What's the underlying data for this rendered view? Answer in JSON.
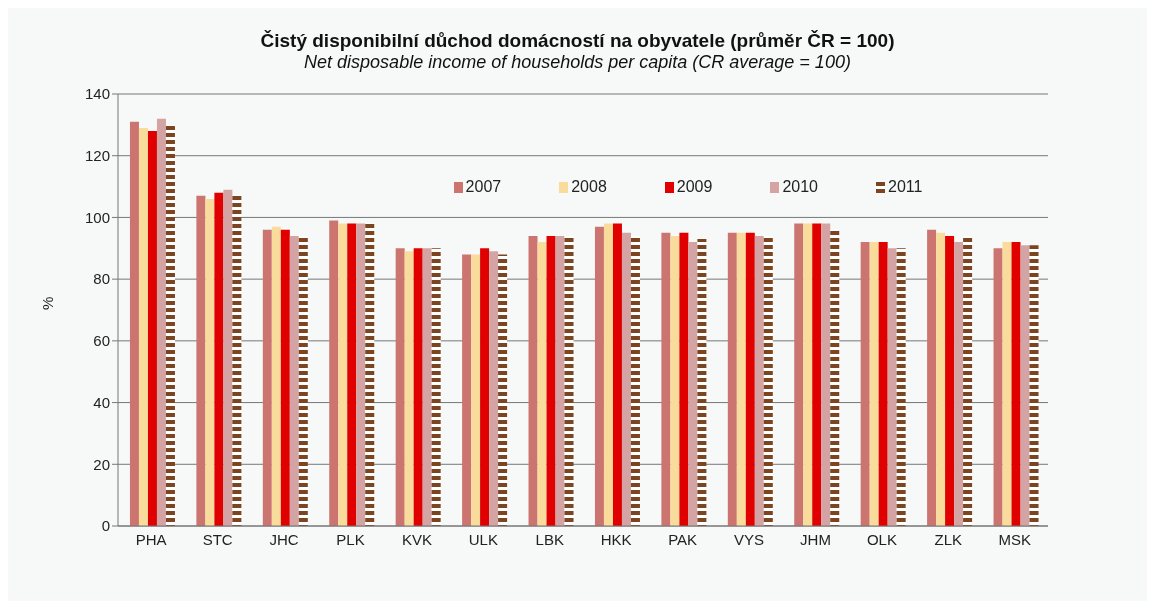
{
  "chart_data": {
    "type": "bar",
    "title": "Čistý disponibilní důchod domácností na obyvatele (průměr ČR = 100)",
    "subtitle": "Net disposable income of households per capita (CR average = 100)",
    "ylabel": "%",
    "categories": [
      "PHA",
      "STC",
      "JHC",
      "PLK",
      "KVK",
      "ULK",
      "LBK",
      "HKK",
      "PAK",
      "VYS",
      "JHM",
      "OLK",
      "ZLK",
      "MSK"
    ],
    "series": [
      {
        "name": "2007",
        "color": "#cc7470",
        "values": [
          131,
          107,
          96,
          99,
          90,
          88,
          94,
          97,
          95,
          95,
          98,
          92,
          96,
          90
        ]
      },
      {
        "name": "2008",
        "color": "#f9dc9c",
        "values": [
          129,
          106,
          97,
          98,
          89,
          88,
          92,
          98,
          94,
          95,
          98,
          92,
          95,
          92
        ]
      },
      {
        "name": "2009",
        "color": "#e00000",
        "values": [
          128,
          108,
          96,
          98,
          90,
          90,
          94,
          98,
          95,
          95,
          98,
          92,
          94,
          92
        ]
      },
      {
        "name": "2010",
        "color": "#d4a3a3",
        "values": [
          132,
          109,
          94,
          98,
          90,
          89,
          94,
          95,
          92,
          94,
          98,
          90,
          92,
          91
        ]
      },
      {
        "name": "2011",
        "color": "#7a4520",
        "values": [
          130,
          107,
          94,
          98,
          90,
          88,
          94,
          94,
          93,
          94,
          96,
          90,
          94,
          91
        ]
      }
    ],
    "ylim": [
      0,
      140
    ],
    "yticks": [
      0,
      20,
      40,
      60,
      80,
      100,
      120,
      140
    ],
    "grid": "y",
    "legend": "top"
  }
}
